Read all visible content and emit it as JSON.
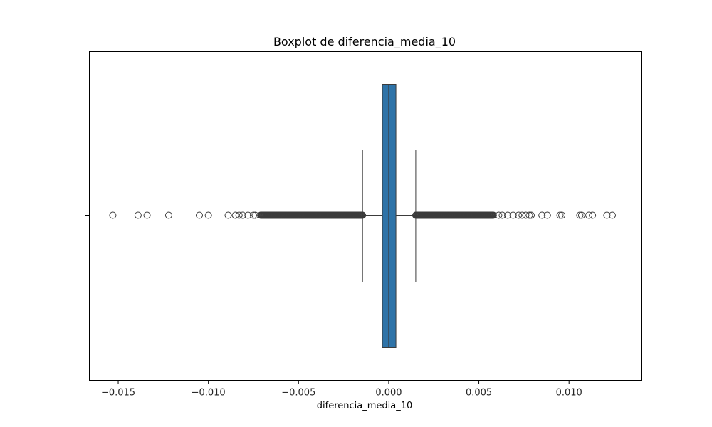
{
  "chart_data": {
    "type": "boxplot",
    "title": "Boxplot de diferencia_media_10",
    "xlabel": "diferencia_media_10",
    "ylabel": "",
    "orientation": "horizontal",
    "xlim": [
      -0.0166,
      0.014
    ],
    "xticks": [
      -0.015,
      -0.01,
      -0.005,
      0.0,
      0.005,
      0.01
    ],
    "xtick_labels": [
      "−0.015",
      "−0.010",
      "−0.005",
      "0.000",
      "0.005",
      "0.010"
    ],
    "grid": false,
    "legend": "none",
    "box": {
      "q1": -0.00035,
      "median": 0.0,
      "q3": 0.0004,
      "whisker_low": -0.00145,
      "whisker_high": 0.0015
    },
    "outliers_low_discrete": [
      -0.0153,
      -0.0139,
      -0.0134,
      -0.0122,
      -0.0105,
      -0.01,
      -0.0089,
      -0.0085,
      -0.0083,
      -0.0081,
      -0.0078,
      -0.0075,
      -0.0074
    ],
    "outliers_low_dense_range": [
      -0.0071,
      -0.00145
    ],
    "outliers_high_dense_range": [
      0.0015,
      0.0058
    ],
    "outliers_high_discrete": [
      0.0061,
      0.0063,
      0.0066,
      0.0069,
      0.0072,
      0.0074,
      0.0076,
      0.0078,
      0.0079,
      0.0085,
      0.0088,
      0.0095,
      0.0096,
      0.0106,
      0.0107,
      0.0111,
      0.0113,
      0.0121,
      0.0124
    ],
    "colors": {
      "box_fill": "#2e73a8",
      "line": "#3b3b3b",
      "flier_edge": "#3b3b3b"
    }
  }
}
